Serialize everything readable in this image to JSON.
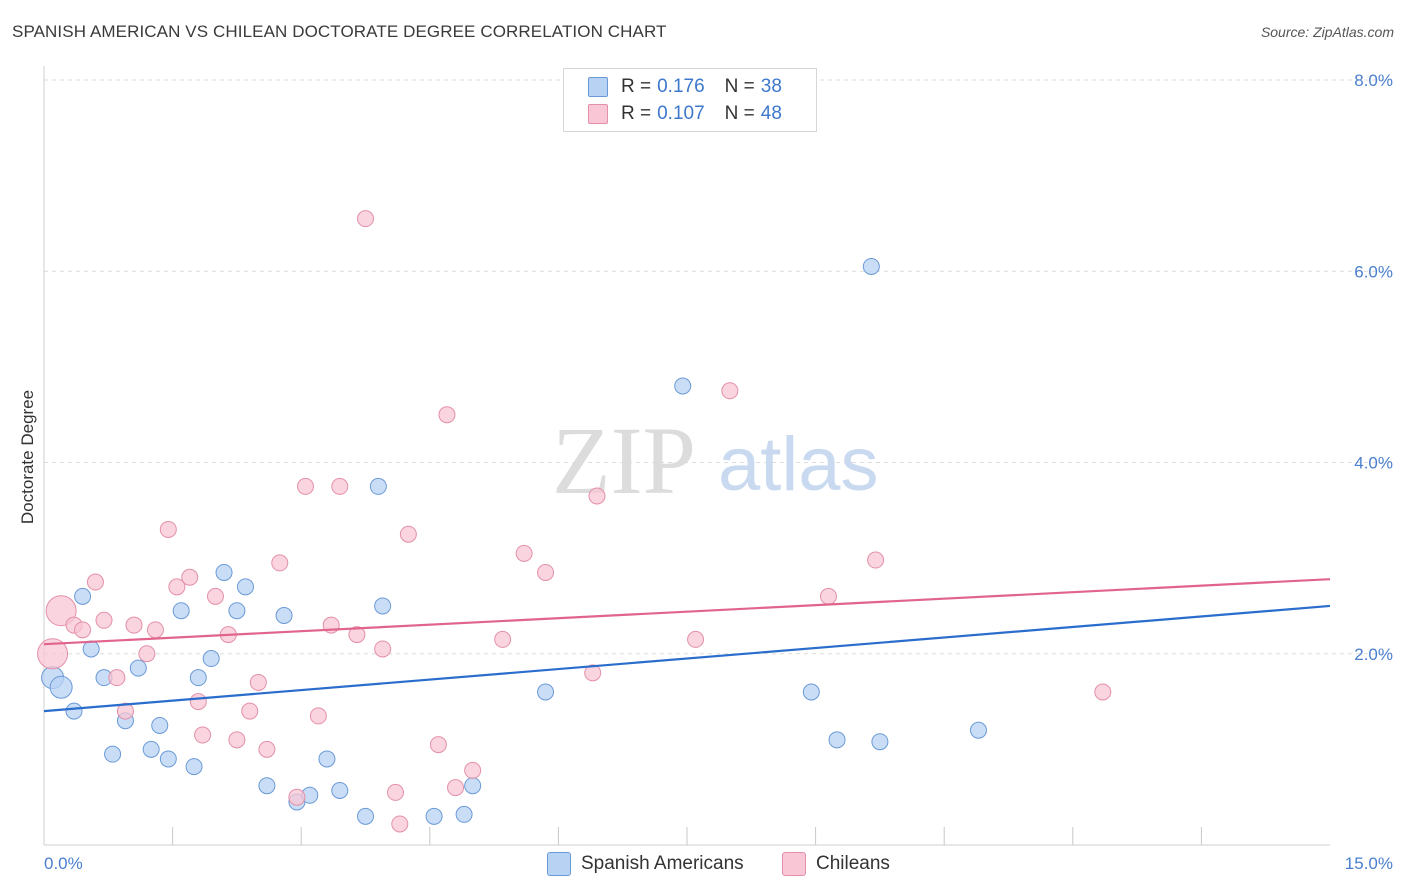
{
  "header": {
    "title": "SPANISH AMERICAN VS CHILEAN DOCTORATE DEGREE CORRELATION CHART",
    "source": "Source: ZipAtlas.com"
  },
  "watermark": {
    "zip": "ZIP",
    "atlas": "atlas"
  },
  "stats": {
    "rows": [
      {
        "r_label": "R =",
        "r_value": "0.176",
        "n_label": "N =",
        "n_value": "38",
        "color": "#b8d2f4"
      },
      {
        "r_label": "R =",
        "r_value": "0.107",
        "n_label": "N =",
        "n_value": "48",
        "color": "#f8c6d4"
      }
    ]
  },
  "legend": {
    "items": [
      {
        "label": "Spanish Americans",
        "color": "#b8d2f4"
      },
      {
        "label": "Chileans",
        "color": "#f8c6d4"
      }
    ]
  },
  "chart_data": {
    "type": "scatter",
    "title": "SPANISH AMERICAN VS CHILEAN DOCTORATE DEGREE CORRELATION CHART",
    "xlabel": "",
    "ylabel": "Doctorate Degree",
    "xlim": [
      0,
      15
    ],
    "ylim": [
      0,
      8
    ],
    "x_tick_labels": [
      "0.0%",
      "15.0%"
    ],
    "y_ticks": [
      {
        "value": 2,
        "label": "2.0%"
      },
      {
        "value": 4,
        "label": "4.0%"
      },
      {
        "value": 6,
        "label": "6.0%"
      },
      {
        "value": 8,
        "label": "8.0%"
      }
    ],
    "x_minor_ticks": [
      1.5,
      3.0,
      4.5,
      6.0,
      7.5,
      9.0,
      10.5,
      12.0,
      13.5
    ],
    "grid": true,
    "series": [
      {
        "name": "Spanish Americans",
        "color": "#b8d2f4",
        "stroke": "#6a9ad6",
        "line_color": "#2a6dcc",
        "trend": {
          "x": [
            0,
            15
          ],
          "y": [
            1.4,
            2.5
          ]
        },
        "points": [
          [
            0.1,
            1.75
          ],
          [
            0.2,
            1.65
          ],
          [
            0.35,
            1.4
          ],
          [
            0.45,
            2.6
          ],
          [
            0.55,
            2.05
          ],
          [
            0.7,
            1.75
          ],
          [
            0.8,
            0.95
          ],
          [
            0.95,
            1.3
          ],
          [
            1.1,
            1.85
          ],
          [
            1.25,
            1.0
          ],
          [
            1.35,
            1.25
          ],
          [
            1.45,
            0.9
          ],
          [
            1.6,
            2.45
          ],
          [
            1.75,
            0.82
          ],
          [
            1.8,
            1.75
          ],
          [
            1.95,
            1.95
          ],
          [
            2.1,
            2.85
          ],
          [
            2.25,
            2.45
          ],
          [
            2.35,
            2.7
          ],
          [
            2.6,
            0.62
          ],
          [
            2.8,
            2.4
          ],
          [
            2.95,
            0.45
          ],
          [
            3.1,
            0.52
          ],
          [
            3.3,
            0.9
          ],
          [
            3.45,
            0.57
          ],
          [
            3.75,
            0.3
          ],
          [
            3.9,
            3.75
          ],
          [
            3.95,
            2.5
          ],
          [
            4.55,
            0.3
          ],
          [
            4.9,
            0.32
          ],
          [
            5.0,
            0.62
          ],
          [
            5.85,
            1.6
          ],
          [
            7.45,
            4.8
          ],
          [
            8.95,
            1.6
          ],
          [
            9.25,
            1.1
          ],
          [
            9.75,
            1.08
          ],
          [
            9.65,
            6.05
          ],
          [
            10.9,
            1.2
          ]
        ]
      },
      {
        "name": "Chileans",
        "color": "#f8c6d4",
        "stroke": "#e390a8",
        "line_color": "#e0648c",
        "trend": {
          "x": [
            0,
            15
          ],
          "y": [
            2.1,
            2.78
          ]
        },
        "points": [
          [
            0.1,
            2.0
          ],
          [
            0.2,
            2.45
          ],
          [
            0.35,
            2.3
          ],
          [
            0.45,
            2.25
          ],
          [
            0.6,
            2.75
          ],
          [
            0.7,
            2.35
          ],
          [
            0.85,
            1.75
          ],
          [
            0.95,
            1.4
          ],
          [
            1.05,
            2.3
          ],
          [
            1.2,
            2.0
          ],
          [
            1.3,
            2.25
          ],
          [
            1.45,
            3.3
          ],
          [
            1.55,
            2.7
          ],
          [
            1.7,
            2.8
          ],
          [
            1.8,
            1.5
          ],
          [
            1.85,
            1.15
          ],
          [
            2.0,
            2.6
          ],
          [
            2.15,
            2.2
          ],
          [
            2.25,
            1.1
          ],
          [
            2.4,
            1.4
          ],
          [
            2.5,
            1.7
          ],
          [
            2.6,
            1.0
          ],
          [
            2.75,
            2.95
          ],
          [
            2.95,
            0.5
          ],
          [
            3.05,
            3.75
          ],
          [
            3.2,
            1.35
          ],
          [
            3.35,
            2.3
          ],
          [
            3.45,
            3.75
          ],
          [
            3.65,
            2.2
          ],
          [
            3.75,
            6.55
          ],
          [
            3.95,
            2.05
          ],
          [
            4.1,
            0.55
          ],
          [
            4.25,
            3.25
          ],
          [
            4.6,
            1.05
          ],
          [
            4.7,
            4.5
          ],
          [
            4.8,
            0.6
          ],
          [
            5.0,
            0.78
          ],
          [
            5.35,
            2.15
          ],
          [
            5.6,
            3.05
          ],
          [
            5.85,
            2.85
          ],
          [
            6.4,
            1.8
          ],
          [
            6.45,
            3.65
          ],
          [
            7.6,
            2.15
          ],
          [
            8.0,
            4.75
          ],
          [
            9.15,
            2.6
          ],
          [
            9.7,
            2.98
          ],
          [
            12.35,
            1.6
          ],
          [
            4.15,
            0.22
          ]
        ]
      }
    ]
  }
}
